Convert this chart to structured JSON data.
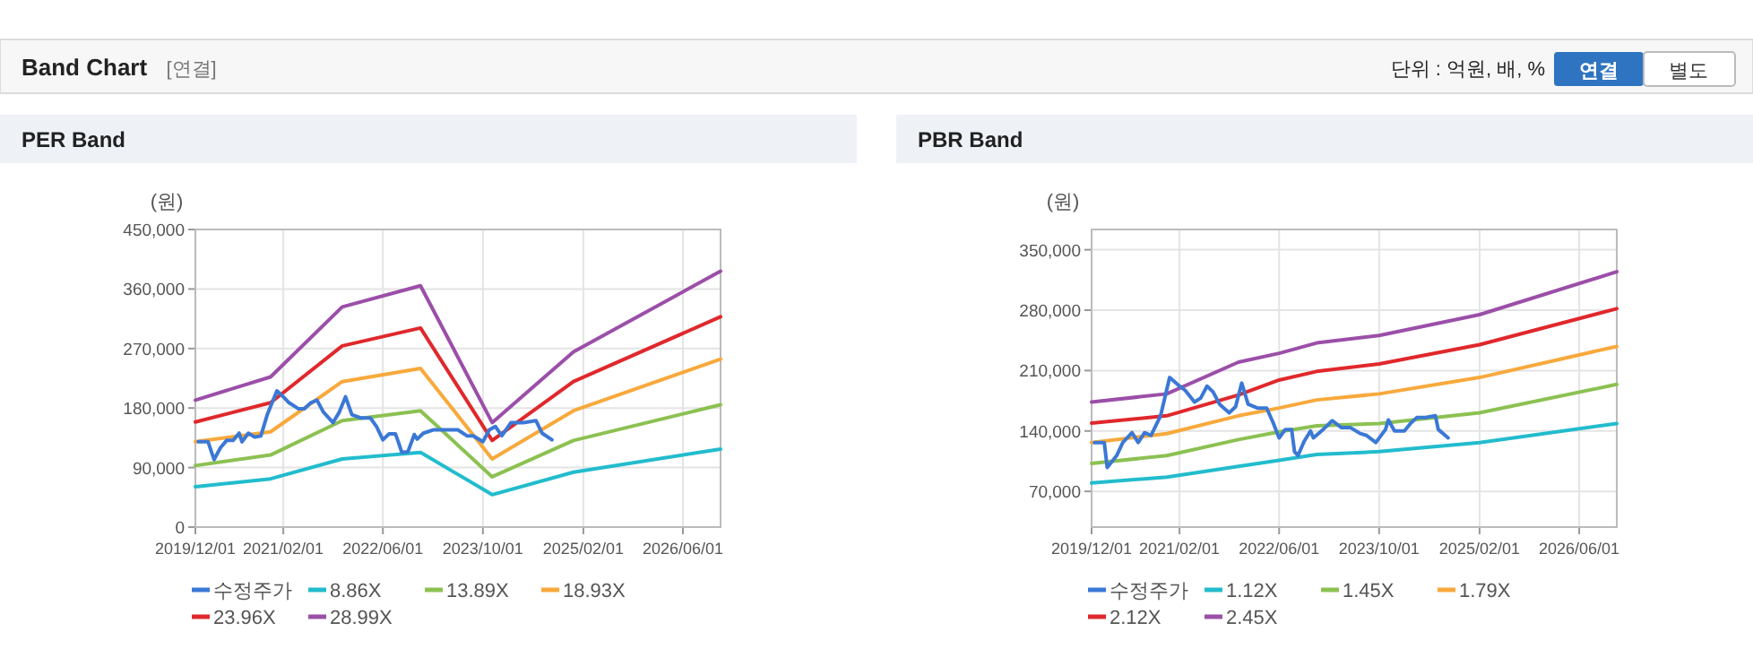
{
  "chart_data": [
    {
      "type": "other",
      "title": "Band Chart",
      "annotations": [
        "[연결]",
        "단위 : 억원, 배, %",
        "연결",
        "별도"
      ]
    },
    {
      "type": "line",
      "title": "PER Band",
      "ylabel": "(원)",
      "grid": true,
      "legend": "bottom",
      "xlim": [
        "2019-12-01",
        "2026-12-01"
      ],
      "ylim": [
        0,
        450000
      ],
      "xticks": [
        {
          "value": "2019-12-01",
          "label": "2019/12/01"
        },
        {
          "value": "2021-02-01",
          "label": "2021/02/01"
        },
        {
          "value": "2022-06-01",
          "label": "2022/06/01"
        },
        {
          "value": "2023-10-01",
          "label": "2023/10/01"
        },
        {
          "value": "2025-02-01",
          "label": "2025/02/01"
        },
        {
          "value": "2026-06-01",
          "label": "2026/06/01"
        }
      ],
      "yticks": [
        {
          "value": 0,
          "label": "0"
        },
        {
          "value": 90000,
          "label": "90,000"
        },
        {
          "value": 180000,
          "label": "180,000"
        },
        {
          "value": 270000,
          "label": "270,000"
        },
        {
          "value": 360000,
          "label": "360,000"
        },
        {
          "value": 450000,
          "label": "450,000"
        }
      ],
      "series": [
        {
          "name": "수정주가",
          "color": "#3b78d6",
          "x": [
            "2019-12-15",
            "2020-02-01",
            "2020-03-01",
            "2020-04-01",
            "2020-05-01",
            "2020-06-01",
            "2020-07-01",
            "2020-07-15",
            "2020-08-15",
            "2020-09-15",
            "2020-10-15",
            "2020-11-15",
            "2021-01-01",
            "2021-02-01",
            "2021-03-01",
            "2021-04-15",
            "2021-05-15",
            "2021-06-15",
            "2021-07-15",
            "2021-08-15",
            "2021-10-01",
            "2021-11-01",
            "2021-12-01",
            "2022-01-01",
            "2022-02-15",
            "2022-04-01",
            "2022-05-01",
            "2022-06-01",
            "2022-07-01",
            "2022-08-01",
            "2022-08-15",
            "2022-09-01",
            "2022-10-01",
            "2022-11-01",
            "2022-11-15",
            "2022-12-15",
            "2023-02-01",
            "2023-03-15",
            "2023-05-01",
            "2023-06-01",
            "2023-07-15",
            "2023-08-15",
            "2023-10-01",
            "2023-11-01",
            "2023-12-01",
            "2024-01-01",
            "2024-02-15",
            "2024-04-15",
            "2024-06-15",
            "2024-07-15",
            "2024-09-01"
          ],
          "values": [
            129000,
            129000,
            102000,
            120000,
            131000,
            131000,
            142000,
            129000,
            142000,
            136000,
            138000,
            170000,
            206000,
            197000,
            188000,
            179000,
            179000,
            188000,
            192000,
            174000,
            158000,
            174000,
            197000,
            170000,
            165000,
            165000,
            152000,
            132000,
            141000,
            141000,
            129000,
            113000,
            114000,
            140000,
            133000,
            142000,
            147000,
            147000,
            147000,
            147000,
            138000,
            138000,
            129000,
            147000,
            152000,
            138000,
            158000,
            158000,
            161000,
            142000,
            132000
          ]
        },
        {
          "name": "8.86X",
          "color": "#22bccd",
          "x": [
            "2019-12-01",
            "2020-12-01",
            "2021-11-15",
            "2022-12-01",
            "2023-11-15",
            "2024-12-15",
            "2026-12-01"
          ],
          "values": [
            61000,
            73000,
            103000,
            113000,
            49000,
            83000,
            118000
          ]
        },
        {
          "name": "13.89X",
          "color": "#8cc152",
          "x": [
            "2019-12-01",
            "2020-12-01",
            "2021-11-15",
            "2022-12-01",
            "2023-11-15",
            "2024-12-15",
            "2026-12-01"
          ],
          "values": [
            93000,
            109000,
            161000,
            176000,
            76000,
            131000,
            185000
          ]
        },
        {
          "name": "18.93X",
          "color": "#f8a93c",
          "x": [
            "2019-12-01",
            "2020-12-01",
            "2021-11-15",
            "2022-12-01",
            "2023-11-15",
            "2024-12-15",
            "2026-12-01"
          ],
          "values": [
            129000,
            144000,
            220000,
            240000,
            103000,
            176000,
            254000
          ]
        },
        {
          "name": "23.96X",
          "color": "#e0282c",
          "x": [
            "2019-12-01",
            "2020-12-01",
            "2021-11-15",
            "2022-12-01",
            "2023-11-15",
            "2024-12-15",
            "2026-12-01"
          ],
          "values": [
            159000,
            188000,
            274000,
            301000,
            131000,
            220000,
            318000
          ]
        },
        {
          "name": "28.99X",
          "color": "#9b4fa8",
          "x": [
            "2019-12-01",
            "2020-12-01",
            "2021-11-15",
            "2022-12-01",
            "2023-11-15",
            "2024-12-15",
            "2026-12-01"
          ],
          "values": [
            192000,
            227000,
            333000,
            365000,
            158000,
            265000,
            387000
          ]
        }
      ]
    },
    {
      "type": "line",
      "title": "PBR Band",
      "ylabel": "(원)",
      "grid": true,
      "legend": "bottom",
      "xlim": [
        "2019-12-01",
        "2026-12-01"
      ],
      "ylim": [
        28600,
        373500
      ],
      "xticks": [
        {
          "value": "2019-12-01",
          "label": "2019/12/01"
        },
        {
          "value": "2021-02-01",
          "label": "2021/02/01"
        },
        {
          "value": "2022-06-01",
          "label": "2022/06/01"
        },
        {
          "value": "2023-10-01",
          "label": "2023/10/01"
        },
        {
          "value": "2025-02-01",
          "label": "2025/02/01"
        },
        {
          "value": "2026-06-01",
          "label": "2026/06/01"
        }
      ],
      "yticks": [
        {
          "value": 70000,
          "label": "70,000"
        },
        {
          "value": 140000,
          "label": "140,000"
        },
        {
          "value": 210000,
          "label": "210,000"
        },
        {
          "value": 280000,
          "label": "280,000"
        },
        {
          "value": 350000,
          "label": "350,000"
        }
      ],
      "series": [
        {
          "name": "수정주가",
          "color": "#3b78d6",
          "x": [
            "2019-12-15",
            "2020-02-01",
            "2020-02-15",
            "2020-04-01",
            "2020-05-01",
            "2020-06-15",
            "2020-07-15",
            "2020-08-15",
            "2020-09-15",
            "2020-11-01",
            "2020-12-15",
            "2021-02-01",
            "2021-03-01",
            "2021-04-15",
            "2021-05-15",
            "2021-06-15",
            "2021-07-15",
            "2021-08-15",
            "2021-10-01",
            "2021-11-01",
            "2021-12-01",
            "2022-01-01",
            "2022-02-15",
            "2022-04-01",
            "2022-05-01",
            "2022-06-01",
            "2022-07-01",
            "2022-08-01",
            "2022-08-15",
            "2022-09-01",
            "2022-10-01",
            "2022-11-01",
            "2022-11-15",
            "2023-01-01",
            "2023-02-15",
            "2023-04-01",
            "2023-05-15",
            "2023-07-01",
            "2023-08-01",
            "2023-09-15",
            "2023-11-01",
            "2023-11-15",
            "2023-12-15",
            "2024-02-01",
            "2024-03-01",
            "2024-04-01",
            "2024-05-15",
            "2024-07-01",
            "2024-07-15",
            "2024-09-01"
          ],
          "values": [
            126600,
            126600,
            97600,
            111400,
            126600,
            138000,
            126600,
            138000,
            134800,
            157600,
            202000,
            192000,
            187000,
            173500,
            178000,
            192000,
            185000,
            171000,
            161000,
            168000,
            195500,
            171000,
            166600,
            166600,
            150700,
            132000,
            141700,
            141700,
            116000,
            111400,
            128000,
            140000,
            132000,
            141700,
            152000,
            143800,
            143800,
            137000,
            134800,
            126600,
            141700,
            152800,
            140000,
            140000,
            148600,
            155500,
            155500,
            157600,
            141700,
            132000
          ]
        },
        {
          "name": "1.12X",
          "color": "#22bccd",
          "x": [
            "2019-12-01",
            "2020-12-01",
            "2021-11-15",
            "2022-06-01",
            "2022-12-01",
            "2023-10-01",
            "2025-02-01",
            "2026-12-01"
          ],
          "values": [
            79700,
            86600,
            99000,
            105900,
            112800,
            116000,
            126600,
            148600
          ]
        },
        {
          "name": "1.45X",
          "color": "#8cc152",
          "x": [
            "2019-12-01",
            "2020-12-01",
            "2021-11-15",
            "2022-06-01",
            "2022-12-01",
            "2023-10-01",
            "2025-02-01",
            "2026-12-01"
          ],
          "values": [
            102400,
            111400,
            130000,
            139000,
            145900,
            148600,
            161000,
            194000
          ]
        },
        {
          "name": "1.79X",
          "color": "#f8a93c",
          "x": [
            "2019-12-01",
            "2020-12-01",
            "2021-11-15",
            "2022-06-01",
            "2022-12-01",
            "2023-10-01",
            "2025-02-01",
            "2026-12-01"
          ],
          "values": [
            126600,
            136900,
            157600,
            166600,
            176000,
            183000,
            202000,
            238000
          ]
        },
        {
          "name": "2.12X",
          "color": "#e0282c",
          "x": [
            "2019-12-01",
            "2020-12-01",
            "2021-11-15",
            "2022-06-01",
            "2022-12-01",
            "2023-10-01",
            "2025-02-01",
            "2026-12-01"
          ],
          "values": [
            149000,
            157600,
            181700,
            199000,
            209000,
            217600,
            240000,
            281700
          ]
        },
        {
          "name": "2.45X",
          "color": "#9b4fa8",
          "x": [
            "2019-12-01",
            "2020-12-01",
            "2021-11-15",
            "2022-06-01",
            "2022-12-01",
            "2023-10-01",
            "2025-02-01",
            "2026-12-01"
          ],
          "values": [
            173500,
            183000,
            219700,
            230000,
            242000,
            250700,
            274800,
            324500
          ]
        }
      ]
    }
  ]
}
